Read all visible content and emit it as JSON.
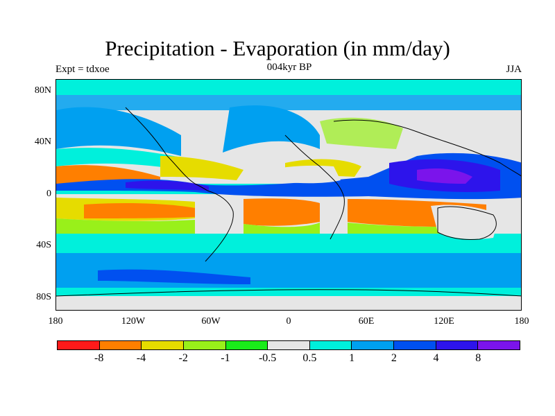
{
  "title": "Precipitation - Evaporation (in mm/day)",
  "subtitle": "004kyr BP",
  "left_label": "Expt = tdxoe",
  "right_label": "JJA",
  "map": {
    "projection": "cylindrical-equidistant",
    "lon_range": [
      -180,
      180
    ],
    "lat_range": [
      -90,
      90
    ],
    "y_ticks": [
      {
        "value": 80,
        "label": "80N"
      },
      {
        "value": 40,
        "label": "40N"
      },
      {
        "value": 0,
        "label": "0"
      },
      {
        "value": -40,
        "label": "40S"
      },
      {
        "value": -80,
        "label": "80S"
      }
    ],
    "x_ticks": [
      {
        "value": -180,
        "label": "180"
      },
      {
        "value": -120,
        "label": "120W"
      },
      {
        "value": -60,
        "label": "60W"
      },
      {
        "value": 0,
        "label": "0"
      },
      {
        "value": 60,
        "label": "60E"
      },
      {
        "value": 120,
        "label": "120E"
      },
      {
        "value": 180,
        "label": "180"
      }
    ]
  },
  "colorbar": {
    "colors": [
      "#ff1a1a",
      "#ff7f00",
      "#e6dc00",
      "#99f01a",
      "#1aeb1a",
      "#e6e6e6",
      "#00f0dc",
      "#00a0f0",
      "#0050f0",
      "#2d14eb",
      "#7b14eb"
    ],
    "labels": [
      "-8",
      "-4",
      "-2",
      "-1",
      "-0.5",
      "0.5",
      "1",
      "2",
      "4",
      "8"
    ]
  }
}
